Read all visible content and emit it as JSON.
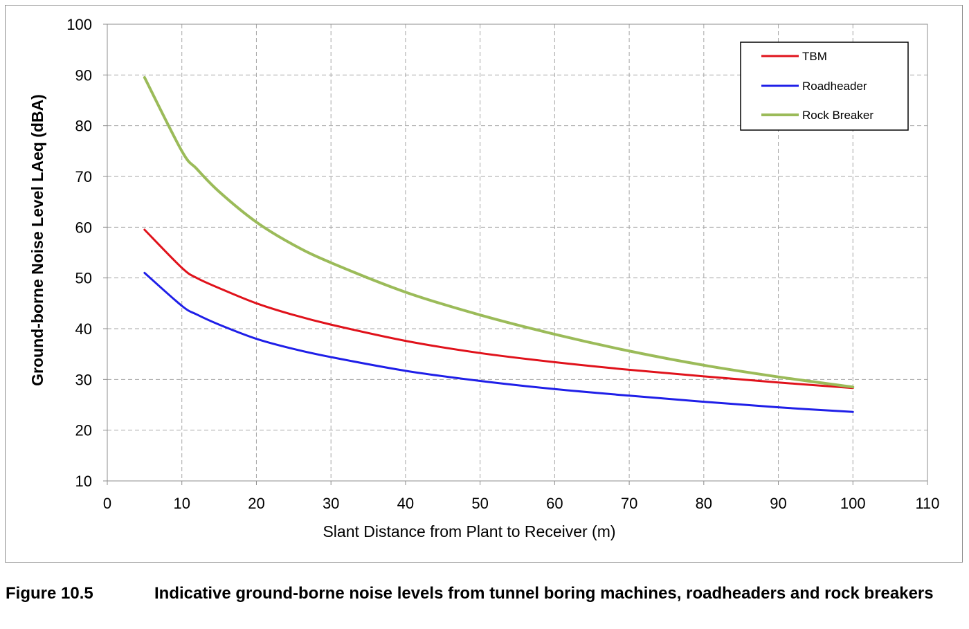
{
  "chart_data": {
    "type": "line",
    "xlabel": "Slant Distance  from Plant to Receiver (m)",
    "ylabel": "Ground-borne Noise Level LAeq (dBA)",
    "xlim": [
      0,
      110
    ],
    "ylim": [
      10,
      100
    ],
    "xticks": [
      0,
      10,
      20,
      30,
      40,
      50,
      60,
      70,
      80,
      90,
      100,
      110
    ],
    "yticks": [
      10,
      20,
      30,
      40,
      50,
      60,
      70,
      80,
      90,
      100
    ],
    "grid": true,
    "legend_position": "top-right",
    "x": [
      5,
      10,
      12,
      15,
      20,
      25,
      30,
      40,
      50,
      60,
      70,
      80,
      90,
      100
    ],
    "series": [
      {
        "name": "TBM",
        "color": "#e0121b",
        "values": [
          59.5,
          52.0,
          50.0,
          48.0,
          45.0,
          42.7,
          40.8,
          37.6,
          35.2,
          33.4,
          31.9,
          30.6,
          29.4,
          28.3
        ]
      },
      {
        "name": "Roadheader",
        "color": "#1f1fe8",
        "values": [
          51.0,
          44.5,
          42.8,
          40.8,
          38.0,
          36.0,
          34.4,
          31.7,
          29.7,
          28.1,
          26.8,
          25.6,
          24.5,
          23.6
        ]
      },
      {
        "name": "Rock Breaker",
        "color": "#9bbb59",
        "values": [
          89.5,
          75.0,
          71.5,
          67.0,
          61.0,
          56.5,
          53.0,
          47.2,
          42.7,
          38.9,
          35.6,
          32.8,
          30.5,
          28.5
        ]
      }
    ]
  },
  "caption": {
    "number": "Figure 10.5",
    "text": "Indicative ground-borne noise levels from tunnel boring machines, roadheaders and rock breakers"
  }
}
